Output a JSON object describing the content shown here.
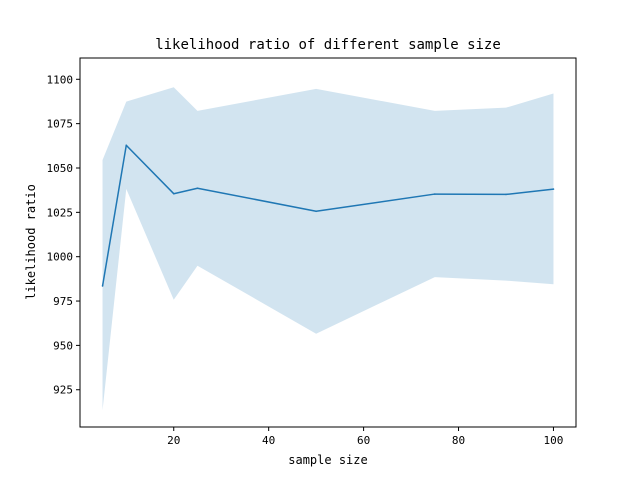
{
  "chart_data": {
    "type": "line",
    "title": "likelihood ratio of different sample size",
    "xlabel": "sample size",
    "ylabel": "likelihood ratio",
    "xlim": [
      0.25,
      104.75
    ],
    "ylim": [
      904,
      1112
    ],
    "xticks": [
      20,
      40,
      60,
      80,
      100
    ],
    "yticks": [
      925,
      950,
      975,
      1000,
      1025,
      1050,
      1075,
      1100
    ],
    "grid": false,
    "legend": "none",
    "x": [
      5,
      10,
      20,
      25,
      50,
      75,
      90,
      100
    ],
    "series": [
      {
        "values": [
          983.5,
          1062.8,
          1035.5,
          1038.6,
          1025.6,
          1035.3,
          1035.1,
          1038.1
        ],
        "upper": [
          1054.5,
          1087.4,
          1095.5,
          1082.2,
          1094.6,
          1082.2,
          1084.0,
          1092.0
        ],
        "lower": [
          913.5,
          1038.2,
          975.7,
          994.9,
          956.6,
          988.5,
          986.5,
          984.5
        ],
        "color": "#1f77b4",
        "band_color": "#1f77b4",
        "band_opacity": 0.2
      }
    ]
  }
}
